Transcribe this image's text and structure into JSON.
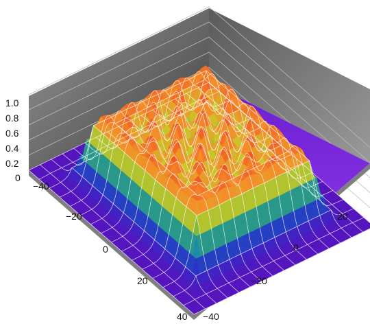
{
  "chart_data": {
    "type": "surface3d",
    "title": "",
    "xlabel": "",
    "ylabel": "",
    "zlabel": "",
    "x_range": [
      -40,
      40
    ],
    "y_range": [
      -40,
      40
    ],
    "z_range": [
      0,
      1.0
    ],
    "z_ticks": [
      "0",
      "0.2",
      "0.4",
      "0.6",
      "0.8",
      "1.0"
    ],
    "x_ticks": [
      "−40",
      "−20",
      "0",
      "20",
      "40"
    ],
    "y_ticks": [
      "−40",
      "−20",
      "0",
      "20"
    ],
    "surface": {
      "shape": "square plateau with rippled interior",
      "plateau_half_width": 27,
      "edge_height": 0.95,
      "interior_height": 0.55,
      "interior_peak_height": 0.95,
      "colormap": "rainbow (violet low → red high)",
      "wireframe": "white"
    },
    "grid": true,
    "colors": {
      "floor": "#8a2be2",
      "pane_left": "#555555",
      "pane_right": "#7a7a7a",
      "wireframe": "#ffffff"
    }
  }
}
